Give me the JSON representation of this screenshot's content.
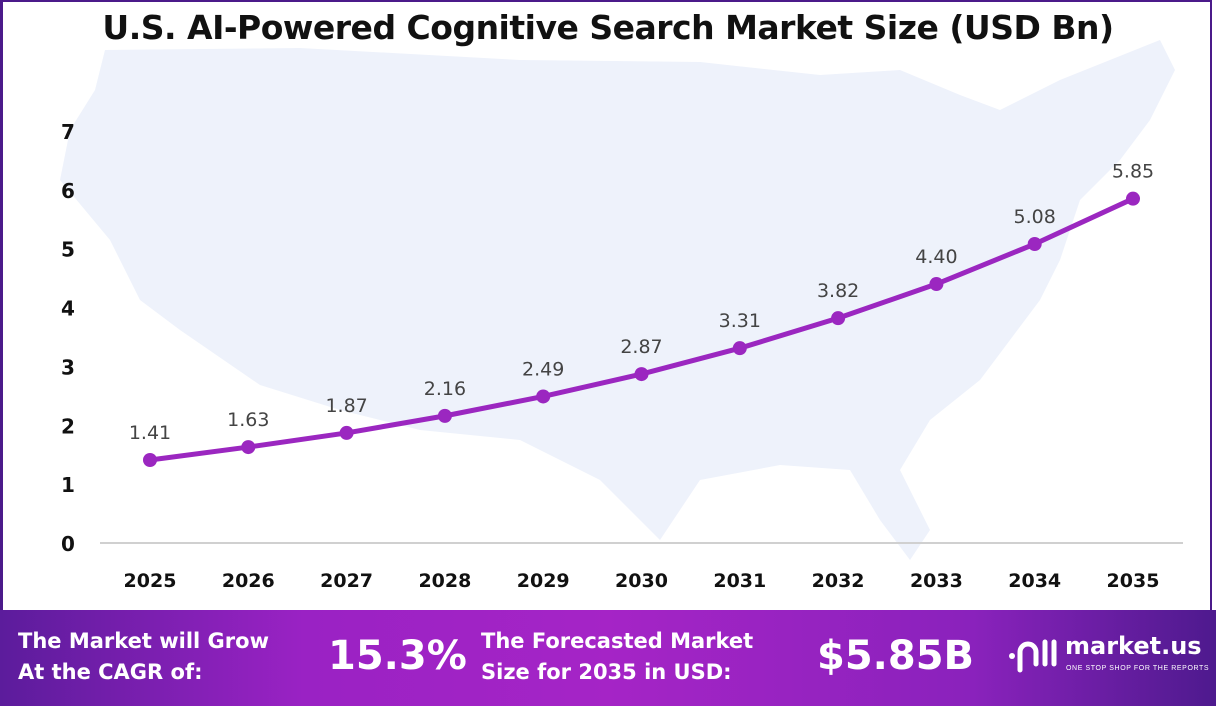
{
  "chart_data": {
    "type": "line",
    "title": "U.S. AI-Powered Cognitive Search Market Size (USD Bn)",
    "categories": [
      "2025",
      "2026",
      "2027",
      "2028",
      "2029",
      "2030",
      "2031",
      "2032",
      "2033",
      "2034",
      "2035"
    ],
    "values": [
      1.41,
      1.63,
      1.87,
      2.16,
      2.49,
      2.87,
      3.31,
      3.82,
      4.4,
      5.08,
      5.85
    ],
    "value_labels": [
      "1.41",
      "1.63",
      "1.87",
      "2.16",
      "2.49",
      "2.87",
      "3.31",
      "3.82",
      "4.40",
      "5.08",
      "5.85"
    ],
    "y_ticks": [
      "0",
      "1",
      "2",
      "3",
      "4",
      "5",
      "6",
      "7"
    ],
    "ylim": [
      0,
      7
    ],
    "grid": false,
    "line_color": "#9b27c0",
    "background_image": "us-map-silhouette"
  },
  "footer": {
    "cagr_label_1": "The Market will Grow",
    "cagr_label_2": "At the CAGR of:",
    "cagr_value": "15.3%",
    "forecast_label_1": "The Forecasted Market",
    "forecast_label_2": "Size for 2035 in USD:",
    "forecast_value": "$5.85B",
    "logo_name": "market.us",
    "logo_tagline": "ONE STOP SHOP FOR THE REPORTS"
  }
}
